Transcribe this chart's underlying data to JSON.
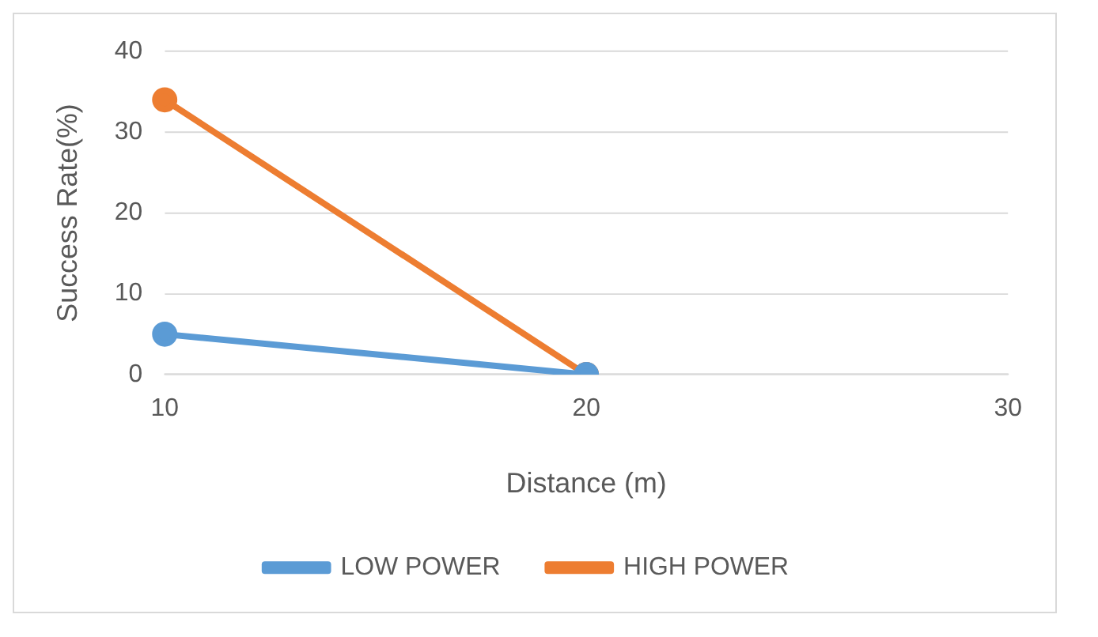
{
  "chart_data": {
    "type": "line",
    "xlabel": "Distance (m)",
    "ylabel": "Success Rate(%)",
    "categories": [
      "10",
      "20",
      "30"
    ],
    "series": [
      {
        "name": "LOW POWER",
        "color": "#5b9bd5",
        "values": [
          5,
          0,
          null
        ]
      },
      {
        "name": "HIGH POWER",
        "color": "#ed7d31",
        "values": [
          34,
          0,
          null
        ]
      }
    ],
    "ylim": [
      0,
      40
    ],
    "yticks": [
      0,
      10,
      20,
      30,
      40
    ],
    "grid": "y",
    "legend": "bottom",
    "marker": "circle",
    "line_style": "solid"
  }
}
